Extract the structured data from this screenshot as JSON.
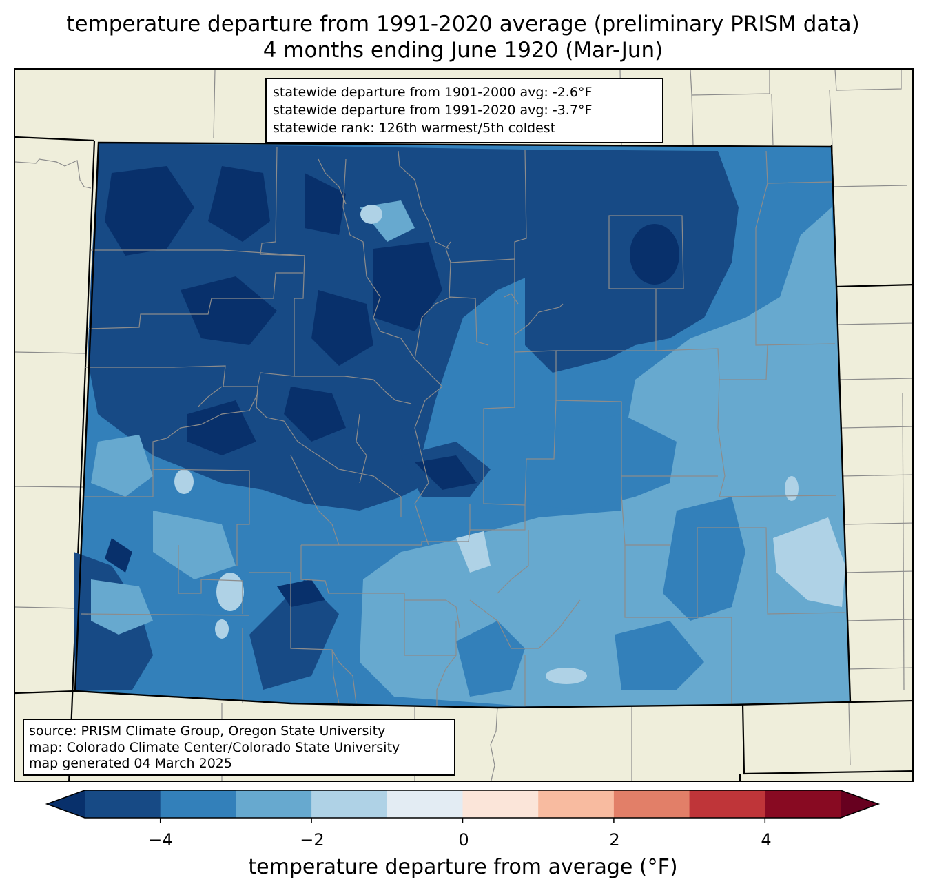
{
  "title": {
    "line1": "temperature departure from 1991-2020 average (preliminary PRISM data)",
    "line2": "4 months ending June 1920 (Mar-Jun)"
  },
  "stats": {
    "line1": "statewide departure from 1901-2000 avg: -2.6°F",
    "line2": "statewide departure from 1991-2020 avg: -3.7°F",
    "line3": "statewide rank: 126th warmest/5th coldest"
  },
  "source": {
    "line1": "source: PRISM Climate Group, Oregon State University",
    "line2": "map: Colorado Climate Center/Colorado State University",
    "line3": "map generated 04 March 2025"
  },
  "colorbar": {
    "label": "temperature departure from average (°F)",
    "ticks": [
      "−4",
      "−2",
      "0",
      "2",
      "4"
    ],
    "bins": [
      {
        "range": "< -5",
        "color": "#08306b"
      },
      {
        "range": "-5 to -4",
        "color": "#174a85"
      },
      {
        "range": "-4 to -3",
        "color": "#3380ba"
      },
      {
        "range": "-3 to -2",
        "color": "#67a9cf"
      },
      {
        "range": "-2 to -1",
        "color": "#afd2e6"
      },
      {
        "range": "-1 to 0",
        "color": "#e3ecf3"
      },
      {
        "range": "0 to 1",
        "color": "#fbe5d9"
      },
      {
        "range": "1 to 2",
        "color": "#f8bba0"
      },
      {
        "range": "2 to 3",
        "color": "#e27f68"
      },
      {
        "range": "3 to 4",
        "color": "#bf3539"
      },
      {
        "range": "4 to 5",
        "color": "#880a22"
      },
      {
        "range": "> 5",
        "color": "#67001f"
      }
    ]
  },
  "colors": {
    "land": "#efeedb",
    "county_line": "#8c8c8c",
    "state_line": "#000000"
  }
}
